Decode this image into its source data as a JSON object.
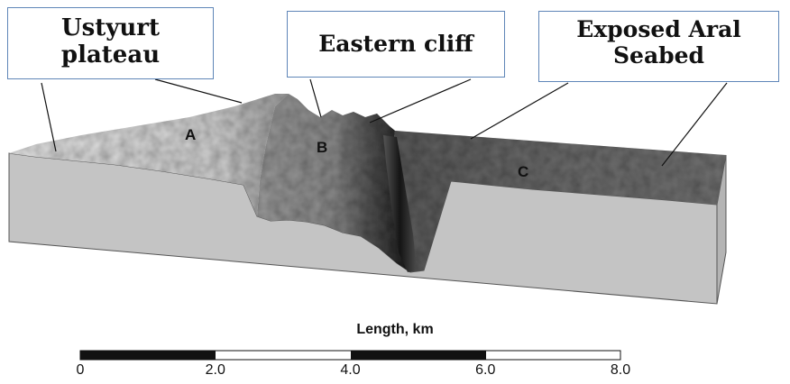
{
  "callouts": {
    "ustyurt": [
      "Ustyurt",
      "plateau"
    ],
    "cliff": [
      "Eastern cliff"
    ],
    "seabed": [
      "Exposed Aral",
      "Seabed"
    ]
  },
  "zones": {
    "a": "A",
    "b": "B",
    "c": "C"
  },
  "scale": {
    "title": "Length, km",
    "ticks": [
      "0",
      "2.0",
      "4.0",
      "6.0",
      "8.0"
    ],
    "tick_values_km": [
      0,
      2,
      4,
      6,
      8
    ]
  },
  "colors": {
    "plateau": "#dcdcdc",
    "cliff_dark": "#2a2a2a",
    "seabed": "#6e6e6e",
    "block_front": "#c4c4c4",
    "callout_border": "#5f86b8"
  }
}
